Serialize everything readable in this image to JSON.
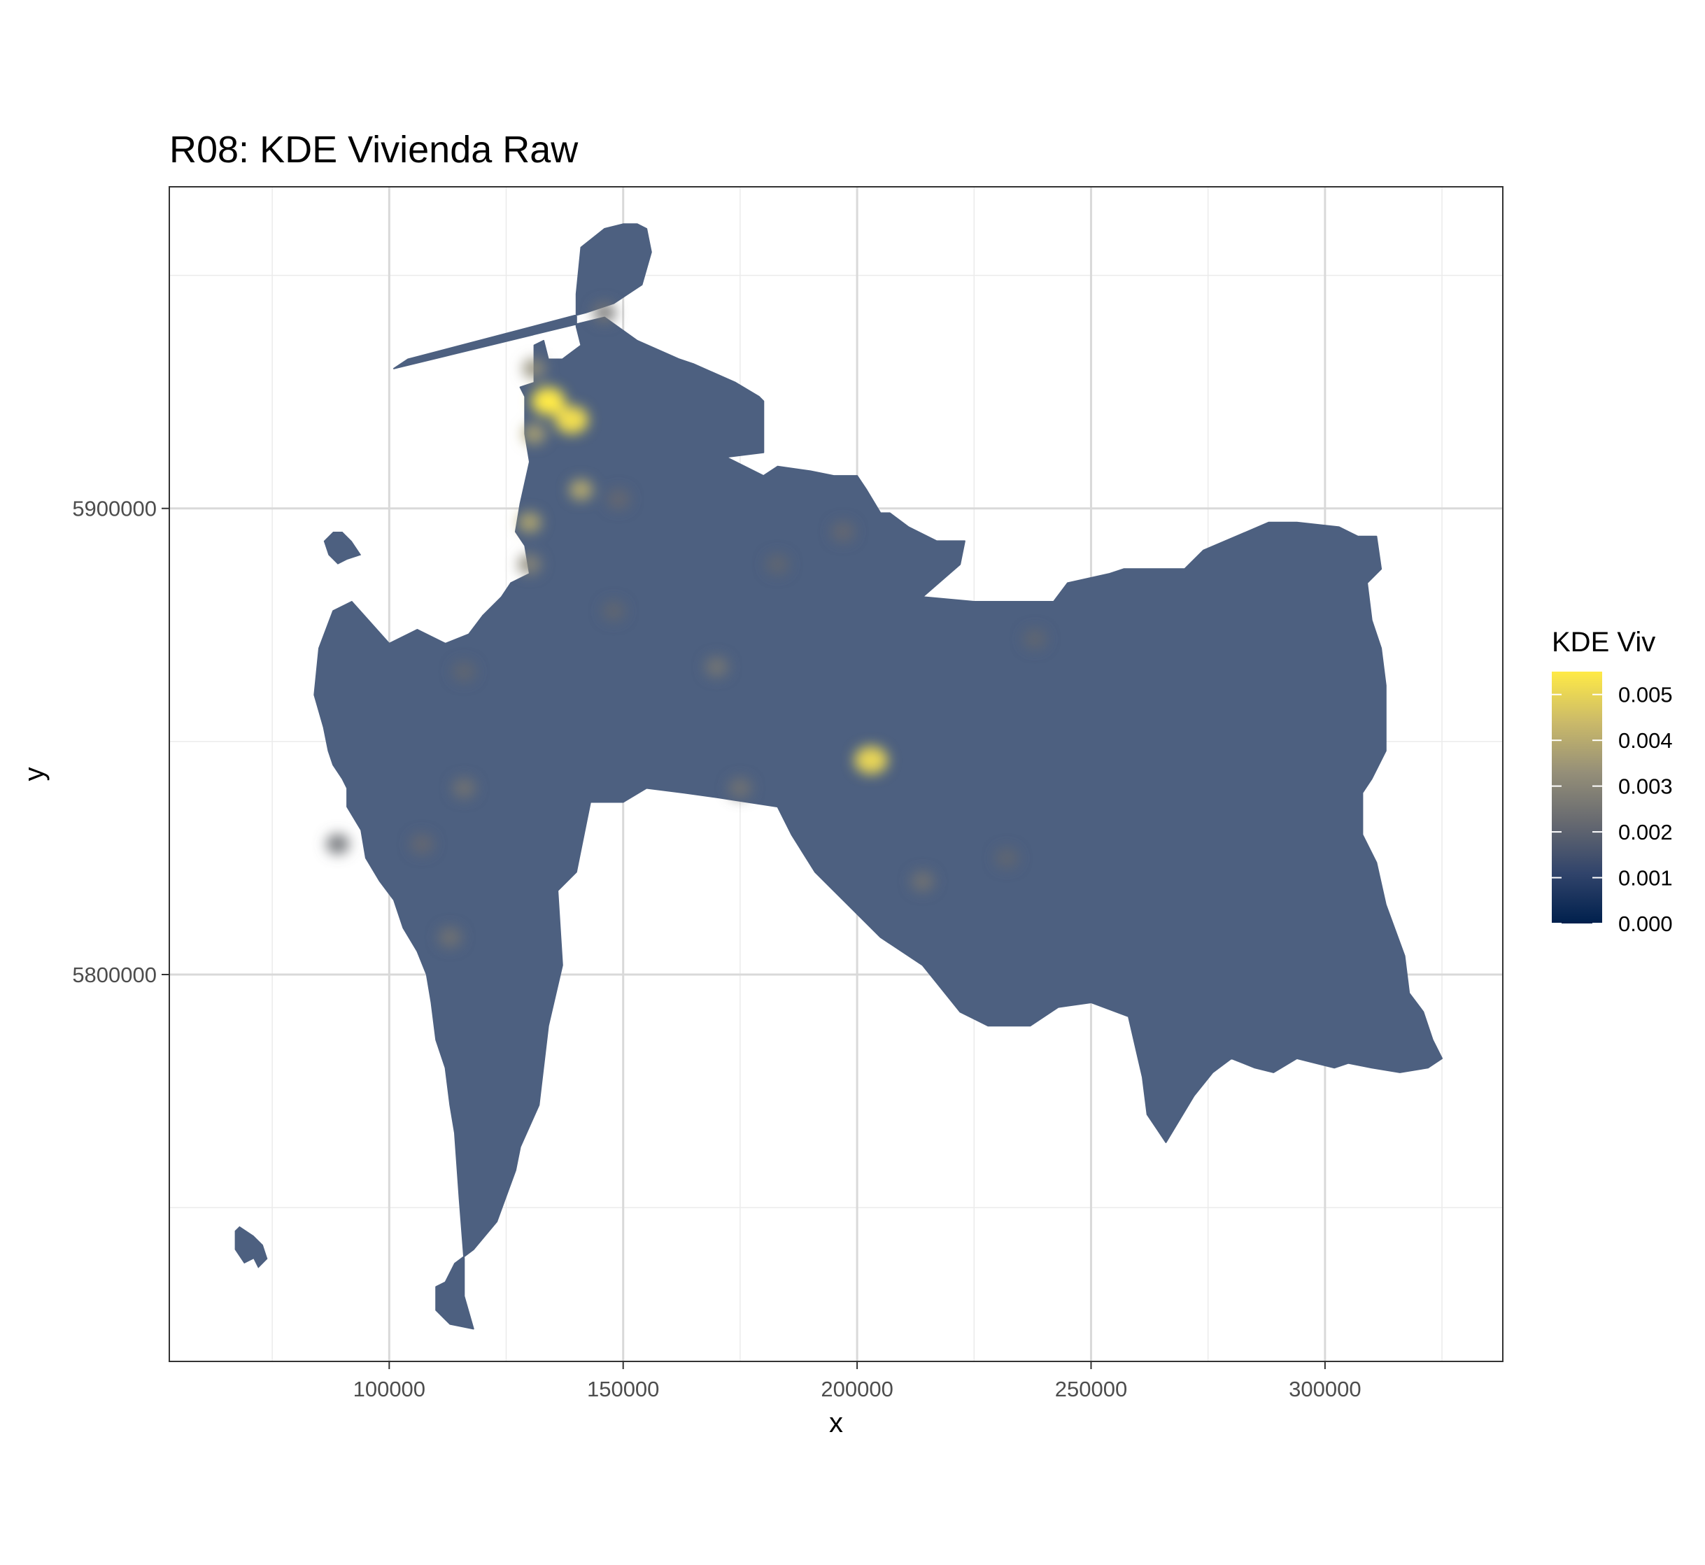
{
  "chart_data": {
    "type": "heatmap",
    "title": "R08: KDE Vivienda Raw",
    "xlabel": "x",
    "ylabel": "y",
    "xlim": [
      53000,
      338000
    ],
    "ylim": [
      5717000,
      5969000
    ],
    "x_ticks": [
      100000,
      150000,
      200000,
      250000,
      300000
    ],
    "x_tick_labels": [
      "100000",
      "150000",
      "200000",
      "250000",
      "300000"
    ],
    "y_ticks": [
      5800000,
      5900000
    ],
    "y_tick_labels": [
      "5800000",
      "5900000"
    ],
    "x_minor_ticks": [
      75000,
      125000,
      175000,
      225000,
      275000,
      325000
    ],
    "y_minor_ticks": [
      5750000,
      5850000,
      5950000
    ],
    "grid": true,
    "legend": {
      "title": "KDE Viv",
      "placement": "right",
      "range": [
        0,
        0.0055
      ],
      "breaks": [
        0.0,
        0.001,
        0.002,
        0.003,
        0.004,
        0.005
      ],
      "labels": [
        "0.000",
        "0.001",
        "0.002",
        "0.003",
        "0.004",
        "0.005"
      ],
      "colors": [
        "#00204d",
        "#31446b",
        "#666970",
        "#958f78",
        "#cbba69",
        "#ffea46"
      ]
    },
    "base_value": 0.0016,
    "base_color": "#4d6080",
    "region_outline": [
      [
        101,
        5930
      ],
      [
        146,
        5941
      ],
      [
        153,
        5936
      ],
      [
        162,
        5932
      ],
      [
        165,
        5931
      ],
      [
        174,
        5927
      ],
      [
        179,
        5924
      ],
      [
        180,
        5923
      ],
      [
        180,
        5912
      ],
      [
        172,
        5911
      ],
      [
        176,
        5909
      ],
      [
        180,
        5907
      ],
      [
        183,
        5909
      ],
      [
        190,
        5908
      ],
      [
        195,
        5907
      ],
      [
        200,
        5907
      ],
      [
        202,
        5904
      ],
      [
        205,
        5899
      ],
      [
        207,
        5899
      ],
      [
        211,
        5896
      ],
      [
        217,
        5893
      ],
      [
        223,
        5893
      ],
      [
        222,
        5888
      ],
      [
        214,
        5881
      ],
      [
        225,
        5880
      ],
      [
        242,
        5880
      ],
      [
        245,
        5884
      ],
      [
        254,
        5886
      ],
      [
        257,
        5887
      ],
      [
        270,
        5887
      ],
      [
        274,
        5891
      ],
      [
        288,
        5897
      ],
      [
        294,
        5897
      ],
      [
        303,
        5896
      ],
      [
        307,
        5894
      ],
      [
        311,
        5894
      ],
      [
        312,
        5887
      ],
      [
        309,
        5884
      ],
      [
        310,
        5876
      ],
      [
        312,
        5870
      ],
      [
        313,
        5862
      ],
      [
        313,
        5848
      ],
      [
        310,
        5842
      ],
      [
        308,
        5839
      ],
      [
        308,
        5830
      ],
      [
        311,
        5824
      ],
      [
        313,
        5815
      ],
      [
        317,
        5804
      ],
      [
        318,
        5796
      ],
      [
        321,
        5792
      ],
      [
        323,
        5786
      ],
      [
        325,
        5782
      ],
      [
        322,
        5780
      ],
      [
        316,
        5779
      ],
      [
        310,
        5780
      ],
      [
        305,
        5781
      ],
      [
        302,
        5780
      ],
      [
        298,
        5781
      ],
      [
        294,
        5782
      ],
      [
        289,
        5779
      ],
      [
        285,
        5780
      ],
      [
        280,
        5782
      ],
      [
        276,
        5779
      ],
      [
        272,
        5774
      ],
      [
        266,
        5764
      ],
      [
        262,
        5770
      ],
      [
        261,
        5778
      ],
      [
        258,
        5791
      ],
      [
        250,
        5794
      ],
      [
        243,
        5793
      ],
      [
        237,
        5789
      ],
      [
        228,
        5789
      ],
      [
        222,
        5792
      ],
      [
        214,
        5802
      ],
      [
        205,
        5808
      ],
      [
        198,
        5815
      ],
      [
        191,
        5822
      ],
      [
        186,
        5830
      ],
      [
        183,
        5836
      ],
      [
        170,
        5838
      ],
      [
        163,
        5839
      ],
      [
        155,
        5840
      ],
      [
        150,
        5837
      ],
      [
        143,
        5837
      ],
      [
        140,
        5822
      ],
      [
        136,
        5818
      ],
      [
        137,
        5802
      ],
      [
        134,
        5789
      ],
      [
        132,
        5772
      ],
      [
        128,
        5763
      ],
      [
        127,
        5758
      ],
      [
        123,
        5747
      ],
      [
        118,
        5741
      ],
      [
        114,
        5738
      ],
      [
        112,
        5734
      ],
      [
        110,
        5733
      ],
      [
        110,
        5728
      ],
      [
        113,
        5725
      ],
      [
        118,
        5724
      ],
      [
        116,
        5731
      ],
      [
        116,
        5739
      ],
      [
        115,
        5752
      ],
      [
        114,
        5766
      ],
      [
        113,
        5772
      ],
      [
        112,
        5780
      ],
      [
        110,
        5786
      ],
      [
        109,
        5794
      ],
      [
        108,
        5800
      ],
      [
        106,
        5805
      ],
      [
        103,
        5810
      ],
      [
        101,
        5816
      ],
      [
        98,
        5820
      ],
      [
        95,
        5825
      ],
      [
        94,
        5831
      ],
      [
        91,
        5836
      ],
      [
        91,
        5840
      ],
      [
        90,
        5842
      ],
      [
        88,
        5845
      ],
      [
        87,
        5848
      ],
      [
        86,
        5853
      ],
      [
        84,
        5860
      ],
      [
        85,
        5870
      ],
      [
        88,
        5878
      ],
      [
        92,
        5880
      ],
      [
        100,
        5871
      ],
      [
        106,
        5874
      ],
      [
        112,
        5871
      ],
      [
        117,
        5873
      ],
      [
        120,
        5877
      ],
      [
        124,
        5881
      ],
      [
        126,
        5884
      ],
      [
        130,
        5886
      ],
      [
        129,
        5892
      ],
      [
        127,
        5895
      ],
      [
        128,
        5901
      ],
      [
        130,
        5910
      ],
      [
        129,
        5916
      ],
      [
        129,
        5924
      ],
      [
        128,
        5926
      ],
      [
        131,
        5927
      ],
      [
        131,
        5935
      ],
      [
        133,
        5936
      ],
      [
        134,
        5932
      ],
      [
        137,
        5932
      ],
      [
        141,
        5935
      ],
      [
        140,
        5939
      ],
      [
        140,
        5946
      ],
      [
        141,
        5956
      ],
      [
        146,
        5960
      ],
      [
        150,
        5961
      ],
      [
        153,
        5961
      ],
      [
        155,
        5960
      ],
      [
        156,
        5955
      ],
      [
        154,
        5948
      ],
      [
        148,
        5944
      ],
      [
        142,
        5942
      ],
      [
        104,
        5932
      ],
      [
        101,
        5930
      ]
    ],
    "islands": [
      [
        [
          86,
          5893
        ],
        [
          88,
          5895
        ],
        [
          90,
          5895
        ],
        [
          92,
          5893
        ],
        [
          94,
          5890
        ],
        [
          91,
          5889
        ],
        [
          89,
          5888
        ],
        [
          87,
          5890
        ],
        [
          86,
          5893
        ]
      ],
      [
        [
          67,
          5745
        ],
        [
          68,
          5746
        ],
        [
          71,
          5744
        ],
        [
          73,
          5742
        ],
        [
          74,
          5739
        ],
        [
          72,
          5737
        ],
        [
          71,
          5739
        ],
        [
          69,
          5738
        ],
        [
          67,
          5741
        ],
        [
          67,
          5745
        ]
      ]
    ],
    "hotspots": [
      {
        "x": 134,
        "y": 5923,
        "value": 0.0055
      },
      {
        "x": 139,
        "y": 5919,
        "value": 0.0052
      },
      {
        "x": 131,
        "y": 5916,
        "value": 0.0038
      },
      {
        "x": 141,
        "y": 5904,
        "value": 0.0042
      },
      {
        "x": 130,
        "y": 5897,
        "value": 0.004
      },
      {
        "x": 131,
        "y": 5930,
        "value": 0.0032
      },
      {
        "x": 130,
        "y": 5888,
        "value": 0.003
      },
      {
        "x": 146,
        "y": 5942,
        "value": 0.0025
      },
      {
        "x": 203,
        "y": 5846,
        "value": 0.005
      },
      {
        "x": 170,
        "y": 5866,
        "value": 0.0026
      },
      {
        "x": 175,
        "y": 5840,
        "value": 0.0025
      },
      {
        "x": 116,
        "y": 5840,
        "value": 0.0025
      },
      {
        "x": 113,
        "y": 5808,
        "value": 0.0025
      },
      {
        "x": 214,
        "y": 5820,
        "value": 0.0025
      },
      {
        "x": 89,
        "y": 5828,
        "value": 0.0023
      },
      {
        "x": 107,
        "y": 5828,
        "value": 0.0022
      },
      {
        "x": 149,
        "y": 5902,
        "value": 0.0022
      },
      {
        "x": 197,
        "y": 5895,
        "value": 0.0022
      },
      {
        "x": 238,
        "y": 5872,
        "value": 0.0021
      },
      {
        "x": 232,
        "y": 5825,
        "value": 0.0021
      },
      {
        "x": 148,
        "y": 5878,
        "value": 0.0021
      },
      {
        "x": 183,
        "y": 5888,
        "value": 0.0021
      },
      {
        "x": 116,
        "y": 5865,
        "value": 0.0021
      }
    ]
  }
}
